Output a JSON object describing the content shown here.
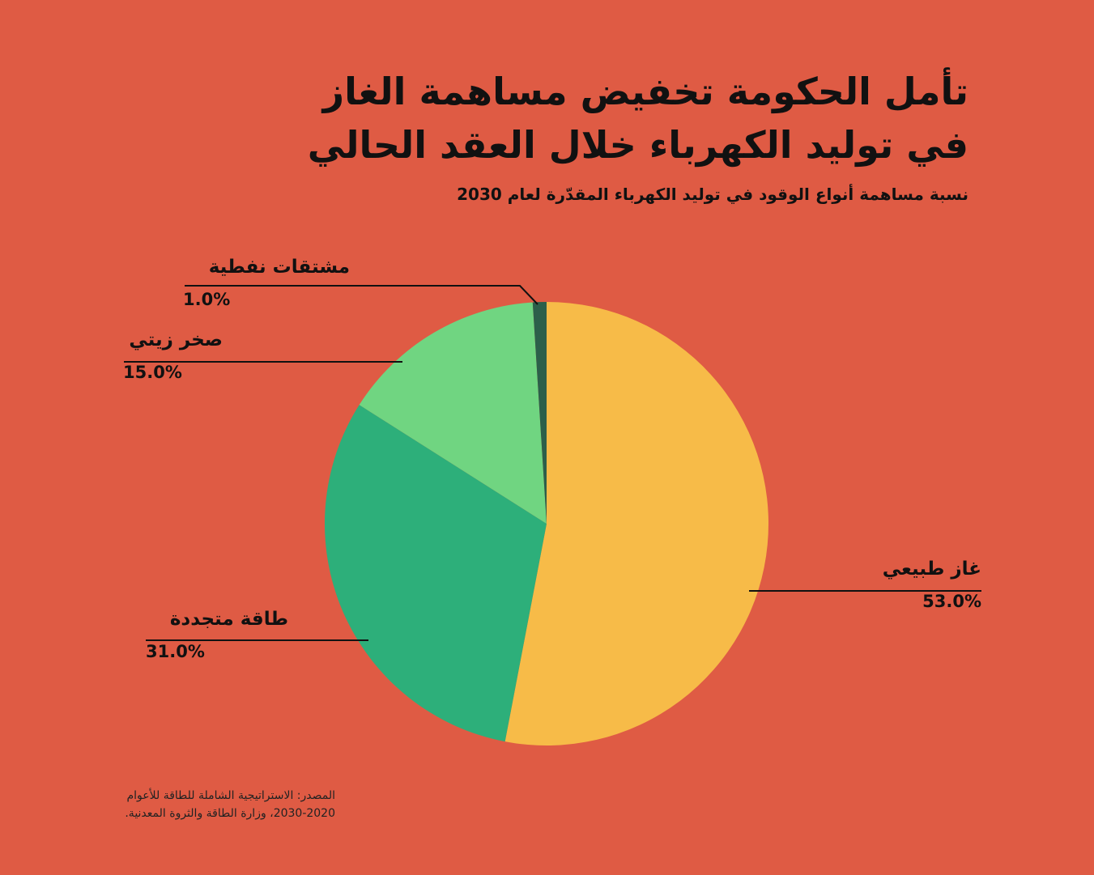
{
  "title": {
    "line1": "تأمل الحكومة تخفيض مساهمة الغاز",
    "line2": "في توليد الكهرباء خلال العقد الحالي"
  },
  "subtitle": "نسبة مساهمة أنواع الوقود في توليد الكهرباء المقدّرة لعام 2030",
  "source": {
    "line1": "المصدر: الاستراتيجية الشاملة للطاقة للأعوام",
    "line2": "2030-2020، وزارة الطاقة والثروة المعدنية."
  },
  "chart_data": {
    "type": "pie",
    "start": "12 o'clock",
    "direction": "clockwise",
    "slices": [
      {
        "label": "غاز طبيعي",
        "value": 53.0,
        "value_label": "53.0%",
        "color": "#f7bb48"
      },
      {
        "label": "طاقة متجددة",
        "value": 31.0,
        "value_label": "31.0%",
        "color": "#2daf7a"
      },
      {
        "label": "صخر زيتي",
        "value": 15.0,
        "value_label": "15.0%",
        "color": "#70d581"
      },
      {
        "label": "مشتقات نفطية",
        "value": 1.0,
        "value_label": "1.0%",
        "color": "#2c5f4a"
      }
    ]
  },
  "colors": {
    "background": "#df5b44",
    "text": "#111111",
    "leader_line": "#111111"
  }
}
